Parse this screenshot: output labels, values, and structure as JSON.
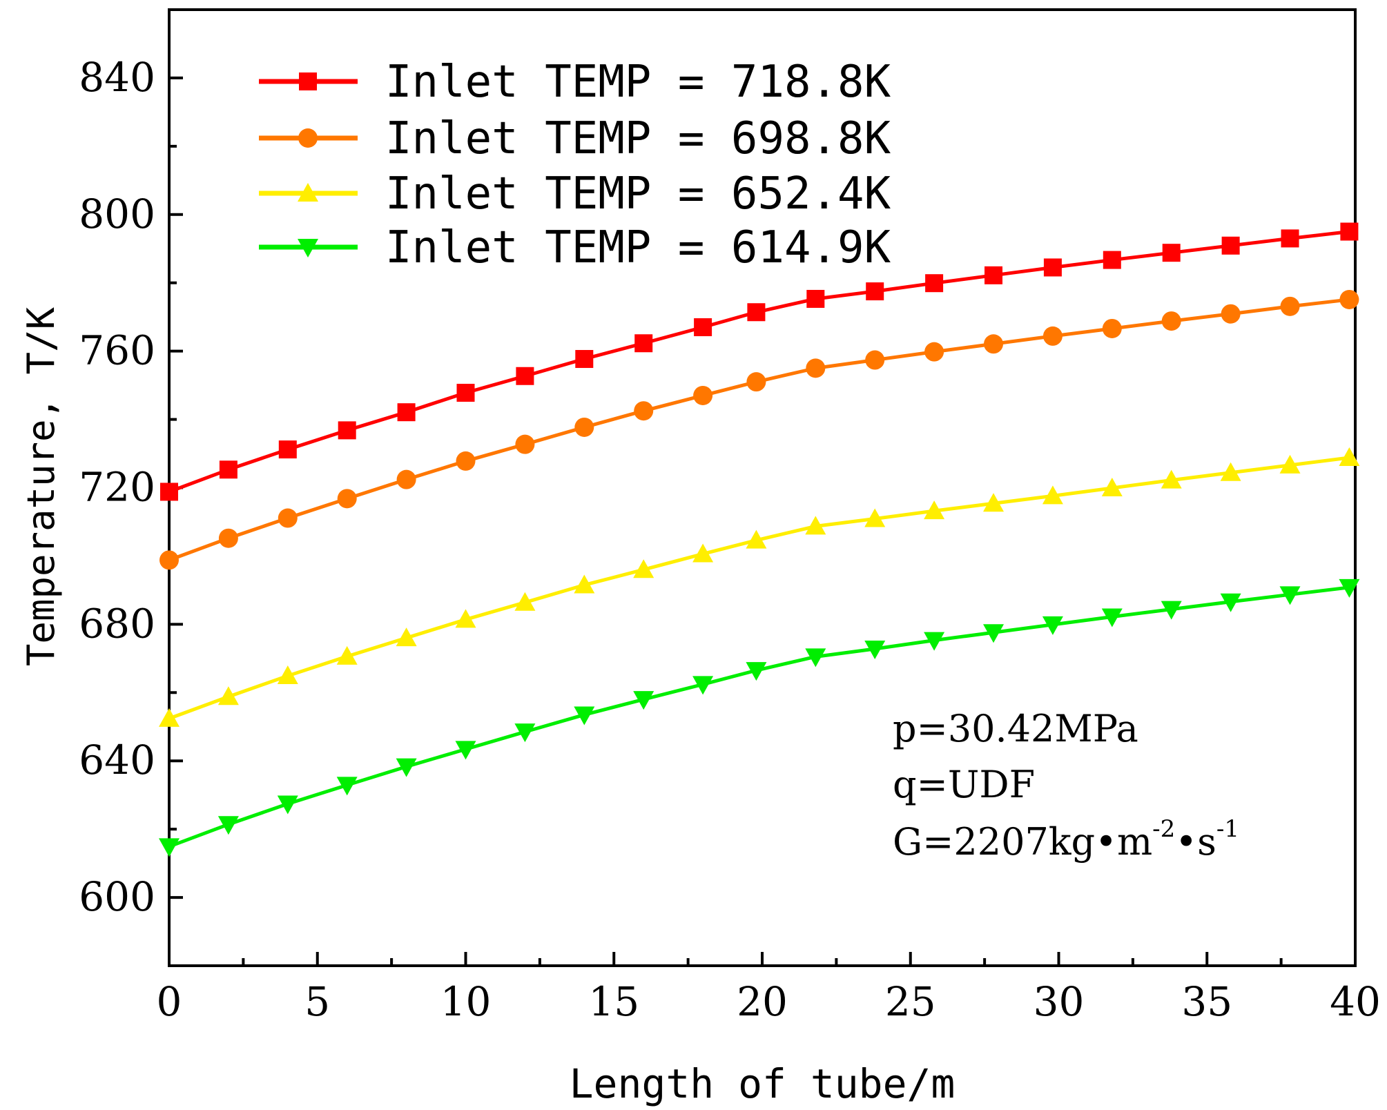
{
  "chart_data": {
    "type": "line",
    "title": "",
    "xlabel": "Length of tube/m",
    "ylabel": "Temperature, T/K",
    "xlim": [
      0,
      40
    ],
    "ylim": [
      580,
      860
    ],
    "xticks": [
      0,
      5,
      10,
      15,
      20,
      25,
      30,
      35,
      40
    ],
    "xtick_labels": [
      "0",
      "5",
      "10",
      "15",
      "20",
      "25",
      "30",
      "35",
      "40"
    ],
    "yticks": [
      600,
      640,
      680,
      720,
      760,
      800,
      840
    ],
    "ytick_labels": [
      "600",
      "640",
      "680",
      "720",
      "760",
      "800",
      "840"
    ],
    "grid": false,
    "legend_position": "top-left",
    "x": [
      0,
      2,
      4,
      6,
      8,
      10,
      12,
      14,
      16,
      18,
      19.8,
      21.8,
      23.8,
      25.8,
      27.8,
      29.8,
      31.8,
      33.8,
      35.8,
      37.8,
      39.8
    ],
    "series": [
      {
        "name": "Inlet TEMP = 718.8K",
        "color": "#ff0000",
        "marker": "square",
        "values": [
          718.8,
          725.3,
          731.2,
          736.8,
          742.1,
          747.8,
          752.7,
          757.7,
          762.3,
          767.0,
          771.4,
          775.3,
          777.5,
          779.9,
          782.2,
          784.5,
          786.7,
          788.8,
          790.9,
          793.0,
          795.0
        ]
      },
      {
        "name": "Inlet TEMP = 698.8K",
        "color": "#ff7700",
        "marker": "circle",
        "values": [
          698.8,
          705.2,
          711.1,
          716.8,
          722.4,
          727.8,
          732.7,
          737.7,
          742.5,
          747.0,
          751.0,
          755.0,
          757.4,
          759.8,
          762.1,
          764.4,
          766.6,
          768.8,
          770.9,
          773.1,
          775.1
        ]
      },
      {
        "name": "Inlet TEMP = 652.4K",
        "color": "#ffee00",
        "marker": "triangle-up",
        "values": [
          652.4,
          658.8,
          664.9,
          670.6,
          676.0,
          681.4,
          686.4,
          691.5,
          696.0,
          700.6,
          704.6,
          708.7,
          710.9,
          713.2,
          715.4,
          717.6,
          719.9,
          722.2,
          724.4,
          726.6,
          728.8
        ]
      },
      {
        "name": "Inlet TEMP = 614.9K",
        "color": "#00ee00",
        "marker": "triangle-down",
        "values": [
          614.9,
          621.4,
          627.4,
          632.9,
          638.3,
          643.4,
          648.5,
          653.5,
          658.0,
          662.4,
          666.5,
          670.5,
          672.8,
          675.3,
          677.6,
          679.9,
          682.2,
          684.4,
          686.6,
          688.7,
          690.8
        ]
      }
    ],
    "annotations": [
      {
        "text": "p=30.42MPa"
      },
      {
        "text": "q=UDF"
      },
      {
        "text": "G=2207kg•m",
        "sup1": "-2",
        "mid": "•s",
        "sup2": "-1"
      }
    ]
  }
}
